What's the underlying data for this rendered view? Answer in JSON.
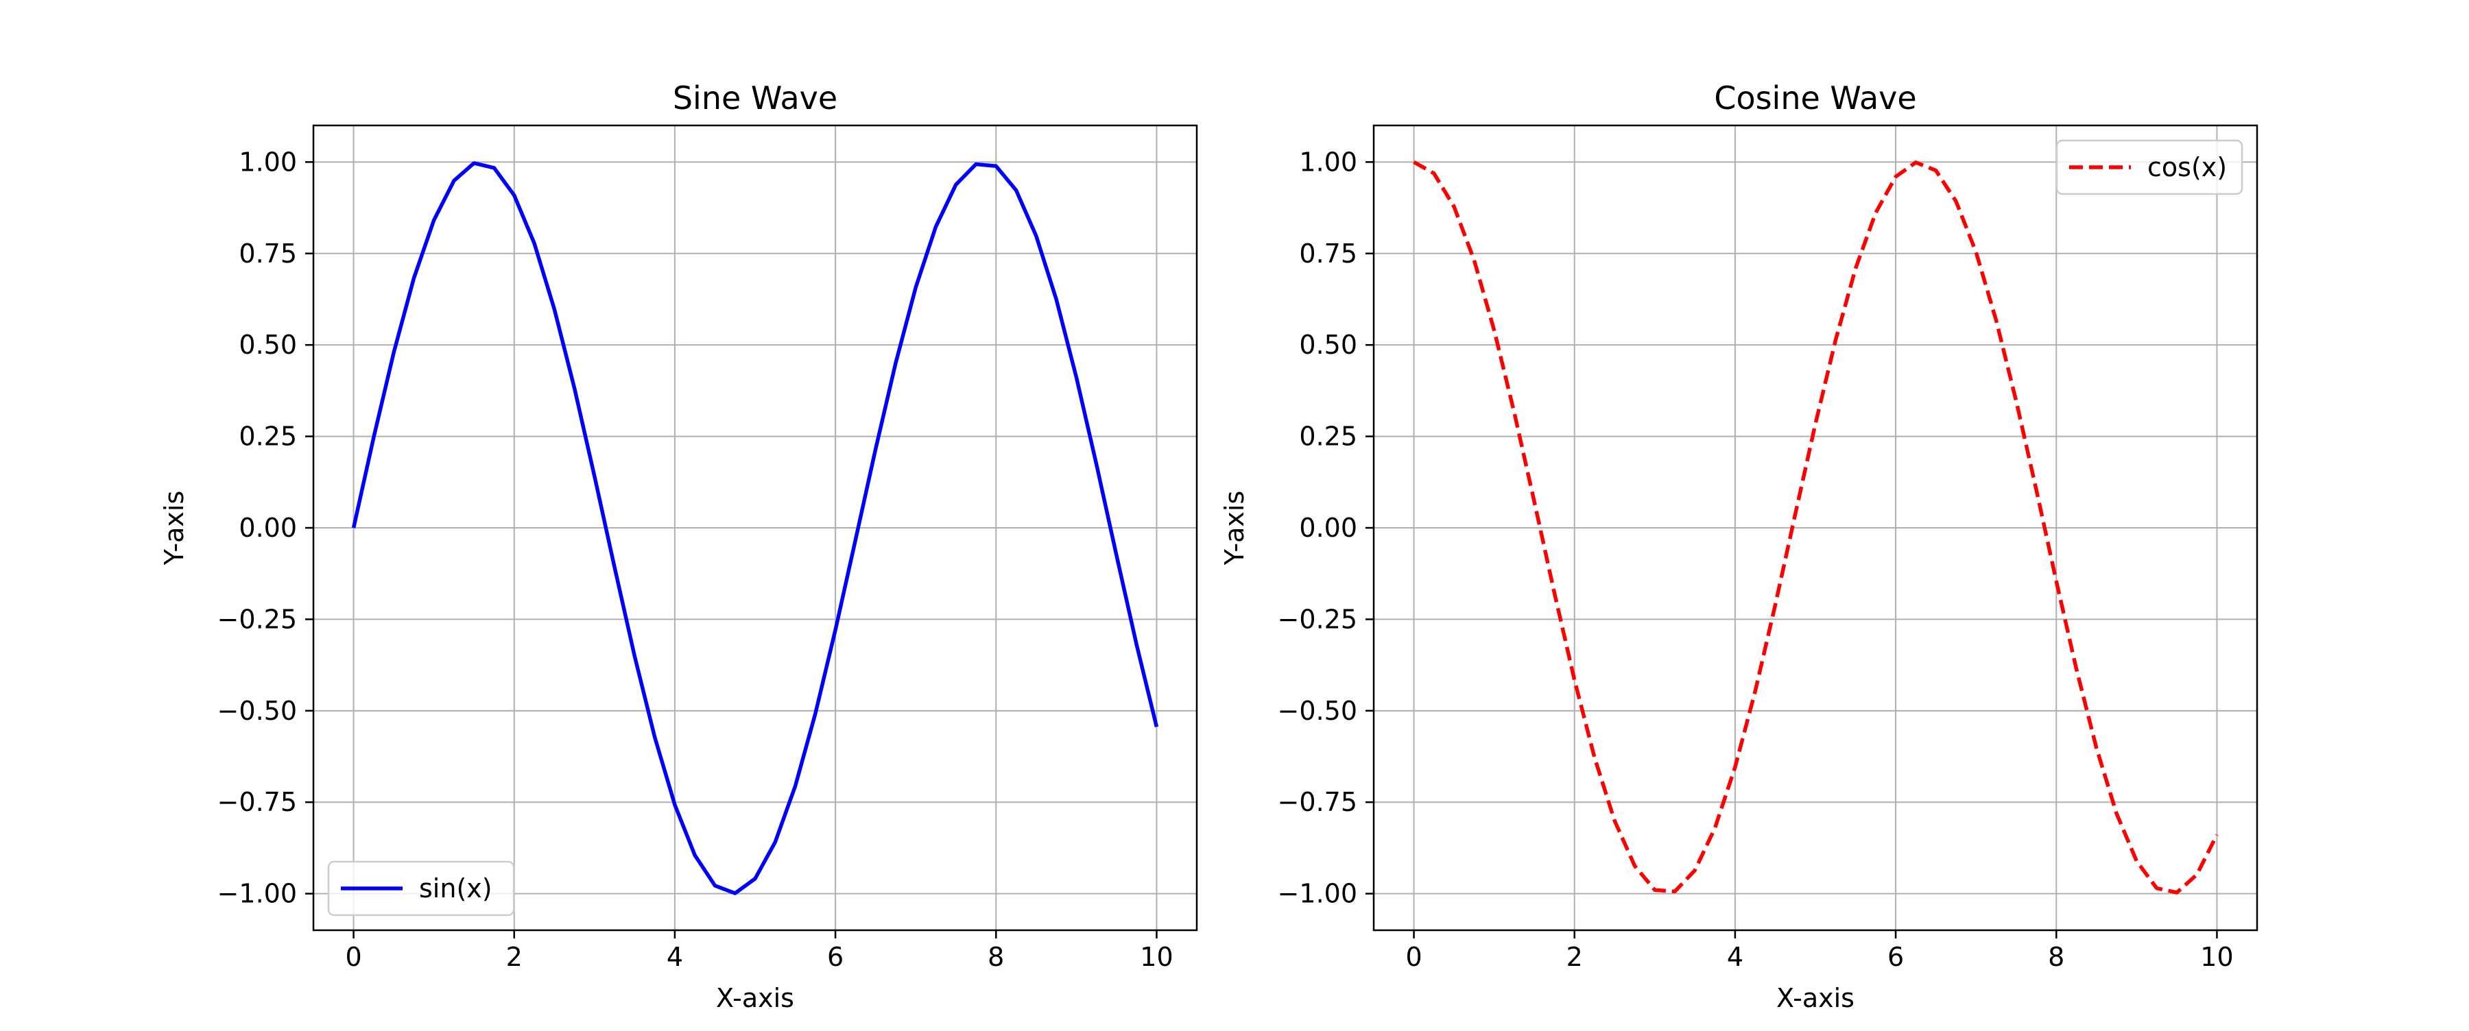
{
  "chart_data": [
    {
      "type": "line",
      "title": "Sine Wave",
      "xlabel": "X-axis",
      "ylabel": "Y-axis",
      "xlim": [
        -0.5,
        10.5
      ],
      "ylim": [
        -1.1,
        1.1
      ],
      "xticks": [
        0,
        2,
        4,
        6,
        8,
        10
      ],
      "xtick_labels": [
        "0",
        "2",
        "4",
        "6",
        "8",
        "10"
      ],
      "yticks": [
        1.0,
        0.75,
        0.5,
        0.25,
        0.0,
        -0.25,
        -0.5,
        -0.75,
        -1.0
      ],
      "ytick_labels": [
        "1.00",
        "0.75",
        "0.50",
        "0.25",
        "0.00",
        "−0.25",
        "−0.50",
        "−0.75",
        "−1.00"
      ],
      "grid": true,
      "legend_position": "lower-left",
      "series": [
        {
          "name": "sin(x)",
          "color": "#0000ff",
          "linestyle": "solid",
          "x": [
            0,
            0.25,
            0.5,
            0.75,
            1,
            1.25,
            1.5,
            1.75,
            2,
            2.25,
            2.5,
            2.75,
            3,
            3.25,
            3.5,
            3.75,
            4,
            4.25,
            4.5,
            4.75,
            5,
            5.25,
            5.5,
            5.75,
            6,
            6.25,
            6.5,
            6.75,
            7,
            7.25,
            7.5,
            7.75,
            8,
            8.25,
            8.5,
            8.75,
            9,
            9.25,
            9.5,
            9.75,
            10
          ],
          "y": [
            0,
            0.247,
            0.479,
            0.682,
            0.841,
            0.949,
            0.997,
            0.984,
            0.909,
            0.778,
            0.598,
            0.382,
            0.141,
            -0.108,
            -0.351,
            -0.572,
            -0.757,
            -0.895,
            -0.978,
            -0.999,
            -0.959,
            -0.859,
            -0.706,
            -0.508,
            -0.279,
            -0.033,
            0.215,
            0.45,
            0.657,
            0.823,
            0.938,
            0.994,
            0.989,
            0.923,
            0.798,
            0.625,
            0.412,
            0.174,
            -0.075,
            -0.319,
            -0.544
          ]
        }
      ]
    },
    {
      "type": "line",
      "title": "Cosine Wave",
      "xlabel": "X-axis",
      "ylabel": "Y-axis",
      "xlim": [
        -0.5,
        10.5
      ],
      "ylim": [
        -1.1,
        1.1
      ],
      "xticks": [
        0,
        2,
        4,
        6,
        8,
        10
      ],
      "xtick_labels": [
        "0",
        "2",
        "4",
        "6",
        "8",
        "10"
      ],
      "yticks": [
        1.0,
        0.75,
        0.5,
        0.25,
        0.0,
        -0.25,
        -0.5,
        -0.75,
        -1.0
      ],
      "ytick_labels": [
        "1.00",
        "0.75",
        "0.50",
        "0.25",
        "0.00",
        "−0.25",
        "−0.50",
        "−0.75",
        "−1.00"
      ],
      "grid": true,
      "legend_position": "upper-right",
      "series": [
        {
          "name": "cos(x)",
          "color": "#ff0000",
          "linestyle": "dashed",
          "x": [
            0,
            0.25,
            0.5,
            0.75,
            1,
            1.25,
            1.5,
            1.75,
            2,
            2.25,
            2.5,
            2.75,
            3,
            3.25,
            3.5,
            3.75,
            4,
            4.25,
            4.5,
            4.75,
            5,
            5.25,
            5.5,
            5.75,
            6,
            6.25,
            6.5,
            6.75,
            7,
            7.25,
            7.5,
            7.75,
            8,
            8.25,
            8.5,
            8.75,
            9,
            9.25,
            9.5,
            9.75,
            10
          ],
          "y": [
            1,
            0.969,
            0.878,
            0.732,
            0.54,
            0.315,
            0.071,
            -0.178,
            -0.416,
            -0.628,
            -0.801,
            -0.924,
            -0.99,
            -0.994,
            -0.936,
            -0.82,
            -0.654,
            -0.447,
            -0.211,
            0.038,
            0.284,
            0.512,
            0.709,
            0.861,
            0.96,
            0.999,
            0.977,
            0.893,
            0.754,
            0.568,
            0.347,
            0.105,
            -0.146,
            -0.386,
            -0.602,
            -0.781,
            -0.911,
            -0.985,
            -0.997,
            -0.948,
            -0.839
          ]
        }
      ]
    }
  ]
}
